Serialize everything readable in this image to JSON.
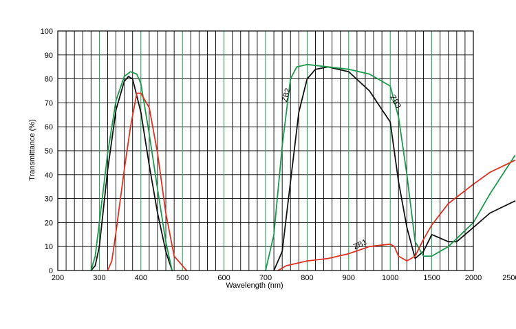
{
  "chart_data": {
    "type": "line",
    "title": "",
    "xlabel": "Wavelength (nm)",
    "ylabel": "Transmittance (%)",
    "ylim": [
      0,
      100
    ],
    "grid": true,
    "legend": "none",
    "x_ticks": [
      "200",
      "300",
      "400",
      "500",
      "600",
      "700",
      "800",
      "900",
      "1000",
      "1500",
      "2000",
      "2500"
    ],
    "y_ticks": [
      "0",
      "10",
      "20",
      "30",
      "40",
      "50",
      "60",
      "70",
      "80",
      "90",
      "100"
    ],
    "colors": {
      "black": "#111111",
      "green": "#1a9a4a",
      "red": "#e0301e",
      "grid": "#000000",
      "grid_green": "#1a9a4a"
    },
    "series": [
      {
        "name": "ZB2",
        "color": "#111111",
        "points": [
          [
            280,
            0
          ],
          [
            290,
            2
          ],
          [
            300,
            10
          ],
          [
            320,
            42
          ],
          [
            340,
            67
          ],
          [
            360,
            79
          ],
          [
            370,
            81
          ],
          [
            380,
            80
          ],
          [
            400,
            66
          ],
          [
            420,
            44
          ],
          [
            440,
            24
          ],
          [
            460,
            8
          ],
          [
            475,
            0
          ],
          [
            720,
            0
          ],
          [
            740,
            8
          ],
          [
            760,
            37
          ],
          [
            780,
            66
          ],
          [
            800,
            80
          ],
          [
            820,
            84
          ],
          [
            850,
            85
          ],
          [
            900,
            83
          ],
          [
            950,
            75
          ],
          [
            1000,
            62
          ],
          [
            1100,
            37
          ],
          [
            1200,
            18
          ],
          [
            1300,
            5
          ],
          [
            1400,
            8
          ],
          [
            1500,
            15
          ],
          [
            1700,
            12
          ],
          [
            1800,
            12
          ],
          [
            2000,
            18
          ],
          [
            2200,
            24
          ],
          [
            2500,
            29
          ]
        ]
      },
      {
        "name": "",
        "color": "#1a9a4a",
        "points": [
          [
            280,
            0
          ],
          [
            290,
            6
          ],
          [
            300,
            20
          ],
          [
            320,
            49
          ],
          [
            340,
            71
          ],
          [
            360,
            81
          ],
          [
            375,
            83
          ],
          [
            390,
            82
          ],
          [
            400,
            78
          ],
          [
            420,
            57
          ],
          [
            440,
            34
          ],
          [
            460,
            12
          ],
          [
            475,
            0
          ],
          [
            700,
            0
          ],
          [
            720,
            15
          ],
          [
            740,
            52
          ],
          [
            760,
            80
          ],
          [
            775,
            85
          ],
          [
            800,
            86
          ],
          [
            850,
            85
          ],
          [
            900,
            84
          ],
          [
            950,
            82
          ],
          [
            1000,
            77
          ],
          [
            1100,
            64
          ],
          [
            1200,
            40
          ],
          [
            1300,
            12
          ],
          [
            1400,
            6
          ],
          [
            1500,
            6
          ],
          [
            1700,
            10
          ],
          [
            2000,
            20
          ],
          [
            2200,
            32
          ],
          [
            2500,
            48
          ]
        ]
      },
      {
        "name": "ZB3",
        "color": "#e0301e",
        "points": [
          [
            320,
            0
          ],
          [
            330,
            4
          ],
          [
            340,
            16
          ],
          [
            360,
            42
          ],
          [
            375,
            60
          ],
          [
            390,
            74
          ],
          [
            400,
            74
          ],
          [
            420,
            68
          ],
          [
            440,
            49
          ],
          [
            460,
            24
          ],
          [
            480,
            6
          ],
          [
            500,
            2
          ],
          [
            510,
            0
          ],
          [
            730,
            0
          ],
          [
            750,
            2
          ],
          [
            800,
            4
          ],
          [
            850,
            5
          ],
          [
            900,
            7
          ],
          [
            950,
            10
          ],
          [
            1000,
            11
          ],
          [
            1050,
            10
          ],
          [
            1100,
            6
          ],
          [
            1200,
            4
          ],
          [
            1300,
            6
          ],
          [
            1400,
            13
          ],
          [
            1500,
            19
          ],
          [
            1700,
            28
          ],
          [
            2000,
            36
          ],
          [
            2200,
            41
          ],
          [
            2500,
            46
          ]
        ]
      }
    ],
    "annotations": [
      {
        "text": "ZB2",
        "x": 755,
        "y": 73,
        "angle": -75
      },
      {
        "text": "ZB3",
        "x": 1040,
        "y": 70,
        "angle": 60
      },
      {
        "text": "ZB1",
        "x": 930,
        "y": 10,
        "angle": -25
      }
    ]
  }
}
